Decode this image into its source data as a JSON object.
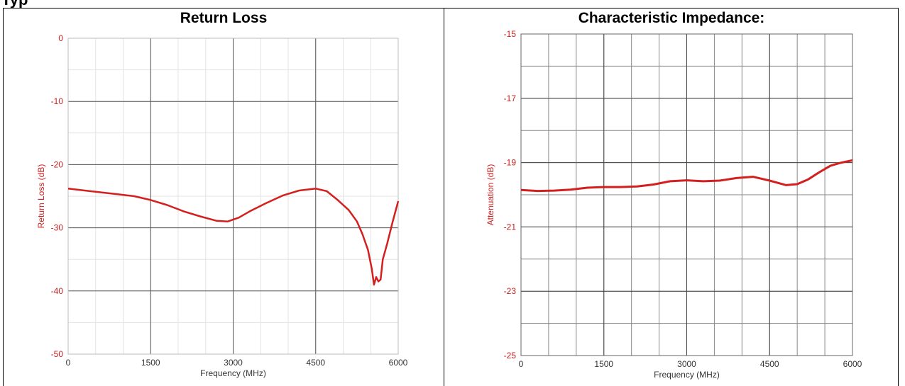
{
  "page": {
    "heading": "Typ"
  },
  "chart_data": [
    {
      "type": "line",
      "title": "Return Loss",
      "xlabel": "Frequency (MHz)",
      "ylabel": "Return Loss (dB)",
      "xlim": [
        0,
        6000
      ],
      "ylim": [
        -50,
        0
      ],
      "x_ticks": [
        "0",
        "1500",
        "3000",
        "4500",
        "6000"
      ],
      "y_ticks": [
        "0",
        "-10",
        "-20",
        "-30",
        "-40",
        "-50"
      ],
      "grid": true,
      "line_color": "#d41f1f",
      "series": [
        {
          "x": [
            0,
            300,
            600,
            900,
            1200,
            1500,
            1800,
            2100,
            2400,
            2700,
            2900,
            3100,
            3300,
            3600,
            3900,
            4200,
            4500,
            4700,
            4900,
            5100,
            5250,
            5350,
            5450,
            5520,
            5560,
            5600,
            5640,
            5680,
            5720,
            5800,
            5900,
            6000
          ],
          "y": [
            -23.8,
            -24.1,
            -24.4,
            -24.7,
            -25.0,
            -25.6,
            -26.4,
            -27.4,
            -28.2,
            -28.9,
            -29.0,
            -28.4,
            -27.4,
            -26.1,
            -24.9,
            -24.1,
            -23.8,
            -24.2,
            -25.6,
            -27.2,
            -29.0,
            -31.0,
            -33.5,
            -36.5,
            -39.0,
            -37.8,
            -38.5,
            -38.2,
            -35.0,
            -32.5,
            -29.0,
            -25.8
          ]
        }
      ]
    },
    {
      "type": "line",
      "title": "Characteristic Impedance:",
      "xlabel": "Frequency (MHz)",
      "ylabel": "Attenuation (dB)",
      "xlim": [
        0,
        6000
      ],
      "ylim": [
        -25,
        -15
      ],
      "x_ticks": [
        "0",
        "1500",
        "3000",
        "4500",
        "6000"
      ],
      "y_ticks": [
        "-15",
        "-17",
        "-19",
        "-21",
        "-23",
        "-25"
      ],
      "grid": true,
      "line_color": "#d41f1f",
      "series": [
        {
          "x": [
            0,
            300,
            600,
            900,
            1200,
            1500,
            1800,
            2100,
            2400,
            2700,
            3000,
            3300,
            3600,
            3900,
            4200,
            4500,
            4800,
            5000,
            5200,
            5400,
            5600,
            5800,
            6000
          ],
          "y": [
            -19.85,
            -19.88,
            -19.87,
            -19.84,
            -19.78,
            -19.76,
            -19.76,
            -19.74,
            -19.68,
            -19.58,
            -19.55,
            -19.58,
            -19.56,
            -19.48,
            -19.44,
            -19.56,
            -19.7,
            -19.67,
            -19.52,
            -19.3,
            -19.1,
            -19.0,
            -18.93
          ]
        }
      ]
    }
  ]
}
